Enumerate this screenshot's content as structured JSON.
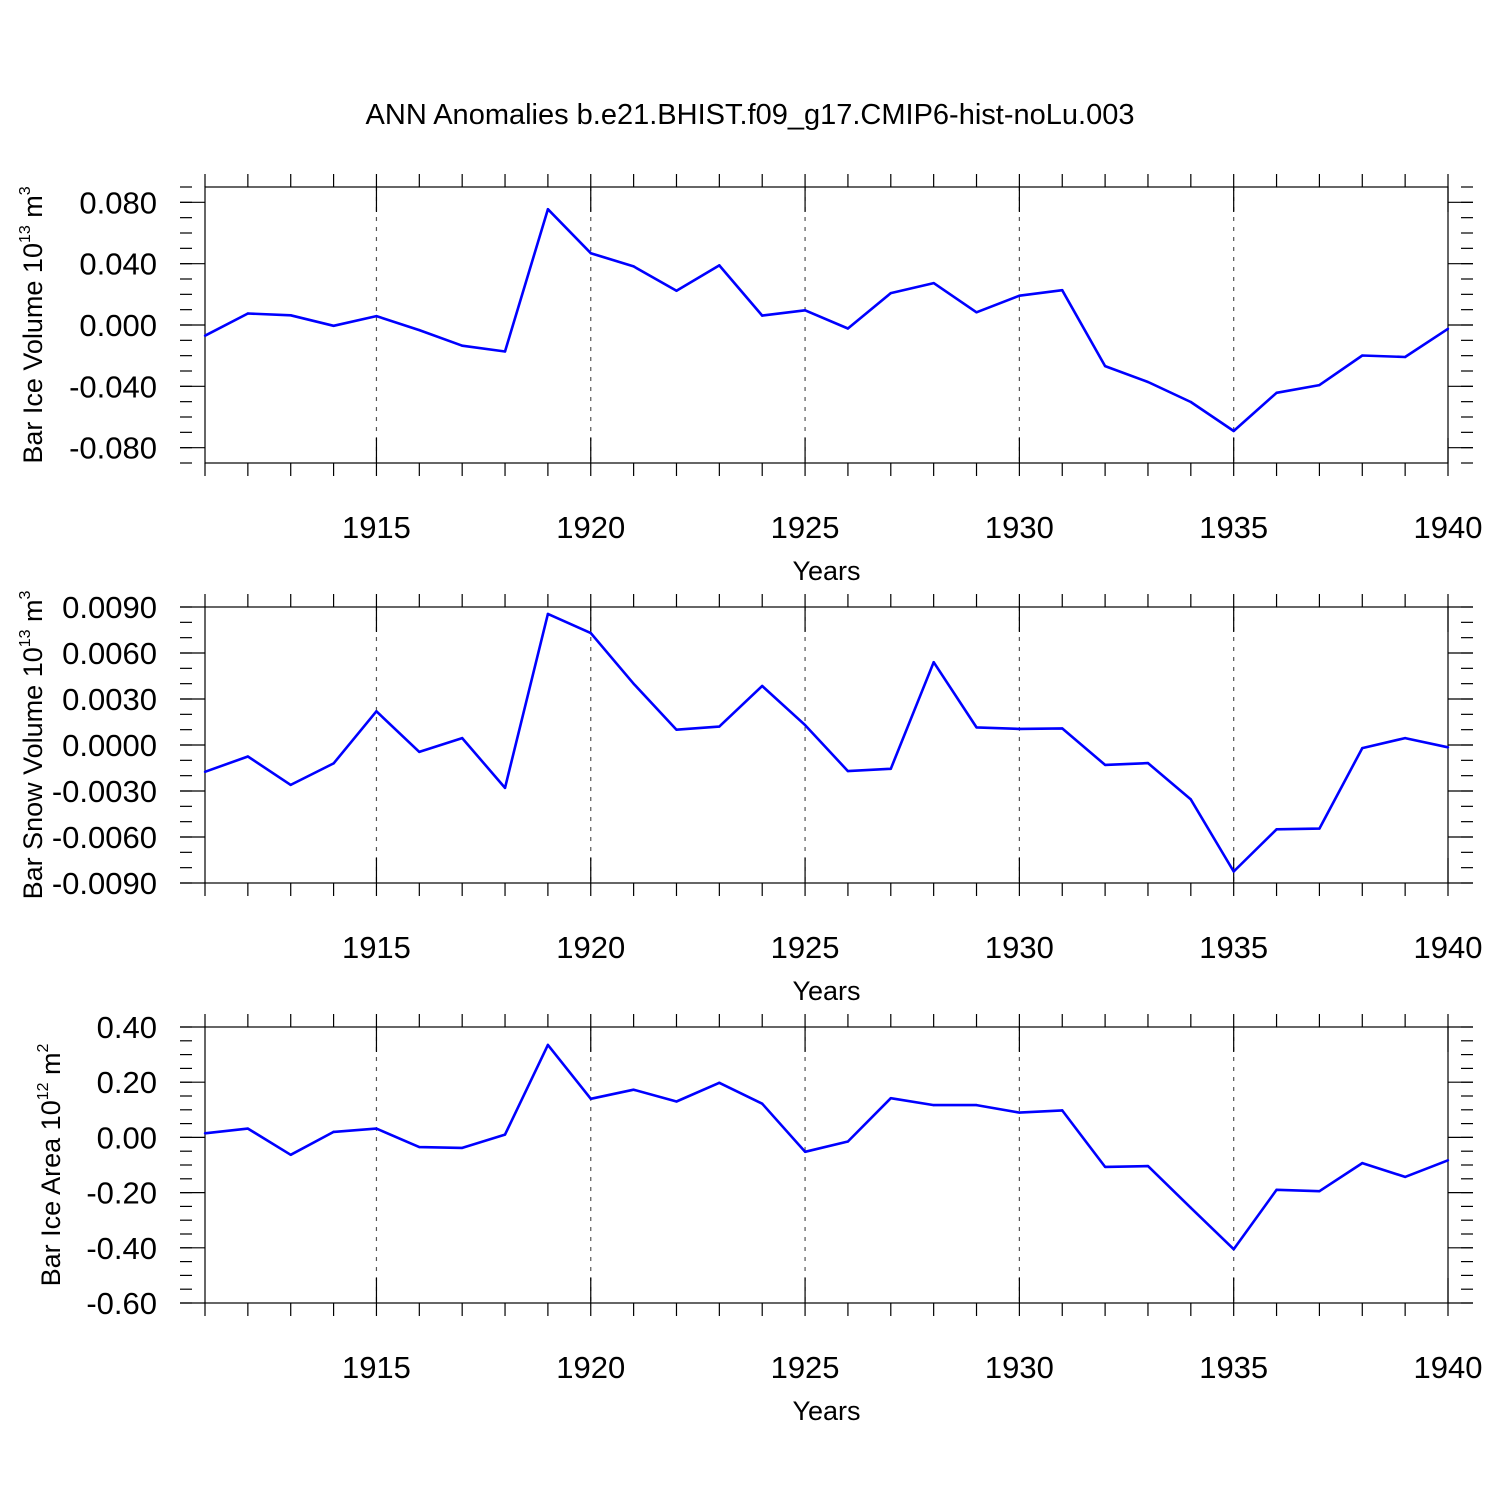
{
  "title": "ANN Anomalies b.e21.BHIST.f09_g17.CMIP6-hist-noLu.003",
  "colors": {
    "line": "#0000ff",
    "frame": "#000000",
    "grid": "#555555"
  },
  "chart_data": [
    {
      "type": "line",
      "name": "ice-volume",
      "ylabel": "Bar Ice Volume 10",
      "ylabel_exp": "13",
      "ylabel_unit": " m",
      "ylabel_unit_exp": "3",
      "xlabel": "Years",
      "xlim": [
        1911,
        1940
      ],
      "ylim": [
        -0.09,
        0.09
      ],
      "yticks": [
        0.08,
        0.04,
        0.0,
        -0.04,
        -0.08
      ],
      "ytick_labels": [
        "0.080",
        "0.040",
        "0.000",
        "-0.040",
        "-0.080"
      ],
      "yminor_step": 0.01,
      "xticks": [
        1915,
        1920,
        1925,
        1930,
        1935,
        1940
      ],
      "xtick_labels": [
        "1915",
        "1920",
        "1925",
        "1930",
        "1935",
        "1940"
      ],
      "grid_x": true,
      "x": [
        1911,
        1912,
        1913,
        1914,
        1915,
        1916,
        1917,
        1918,
        1919,
        1920,
        1921,
        1922,
        1923,
        1924,
        1925,
        1926,
        1927,
        1928,
        1929,
        1930,
        1931,
        1932,
        1933,
        1934,
        1935,
        1936,
        1937,
        1938,
        1939,
        1940
      ],
      "values": [
        -0.007,
        0.0075,
        0.0063,
        -0.0005,
        0.0058,
        -0.0033,
        -0.0135,
        -0.0173,
        0.0755,
        0.0468,
        0.0382,
        0.0223,
        0.0389,
        0.0061,
        0.0096,
        -0.0023,
        0.0208,
        0.0273,
        0.0083,
        0.0191,
        0.0227,
        -0.0268,
        -0.0372,
        -0.0502,
        -0.0691,
        -0.0442,
        -0.0392,
        -0.0199,
        -0.0209,
        -0.0025
      ]
    },
    {
      "type": "line",
      "name": "snow-volume",
      "ylabel": "Bar Snow Volume 10",
      "ylabel_exp": "13",
      "ylabel_unit": " m",
      "ylabel_unit_exp": "3",
      "xlabel": "Years",
      "xlim": [
        1911,
        1940
      ],
      "ylim": [
        -0.009,
        0.009
      ],
      "yticks": [
        0.009,
        0.006,
        0.003,
        0.0,
        -0.003,
        -0.006,
        -0.009
      ],
      "ytick_labels": [
        "0.0090",
        "0.0060",
        "0.0030",
        "0.0000",
        "-0.0030",
        "-0.0060",
        "-0.0090"
      ],
      "yminor_step": 0.001,
      "xticks": [
        1915,
        1920,
        1925,
        1930,
        1935,
        1940
      ],
      "xtick_labels": [
        "1915",
        "1920",
        "1925",
        "1930",
        "1935",
        "1940"
      ],
      "grid_x": true,
      "x": [
        1911,
        1912,
        1913,
        1914,
        1915,
        1916,
        1917,
        1918,
        1919,
        1920,
        1921,
        1922,
        1923,
        1924,
        1925,
        1926,
        1927,
        1928,
        1929,
        1930,
        1931,
        1932,
        1933,
        1934,
        1935,
        1936,
        1937,
        1938,
        1939,
        1940
      ],
      "values": [
        -0.00175,
        -0.00075,
        -0.0026,
        -0.0012,
        0.0022,
        -0.00045,
        0.00045,
        -0.0028,
        0.00855,
        0.0073,
        0.004,
        0.001,
        0.0012,
        0.00385,
        0.0013,
        -0.0017,
        -0.00155,
        0.0054,
        0.00115,
        0.00105,
        0.00108,
        -0.0013,
        -0.00118,
        -0.00355,
        -0.00825,
        -0.0055,
        -0.00545,
        -0.0002,
        0.00045,
        -0.00015
      ]
    },
    {
      "type": "line",
      "name": "ice-area",
      "ylabel": "Bar Ice Area 10",
      "ylabel_exp": "12",
      "ylabel_unit": " m",
      "ylabel_unit_exp": "2",
      "xlabel": "Years",
      "xlim": [
        1911,
        1940
      ],
      "ylim": [
        -0.6,
        0.4
      ],
      "yticks": [
        0.4,
        0.2,
        0.0,
        -0.2,
        -0.4,
        -0.6
      ],
      "ytick_labels": [
        "0.40",
        "0.20",
        "0.00",
        "-0.20",
        "-0.40",
        "-0.60"
      ],
      "yminor_step": 0.05,
      "xticks": [
        1915,
        1920,
        1925,
        1930,
        1935,
        1940
      ],
      "xtick_labels": [
        "1915",
        "1920",
        "1925",
        "1930",
        "1935",
        "1940"
      ],
      "grid_x": true,
      "x": [
        1911,
        1912,
        1913,
        1914,
        1915,
        1916,
        1917,
        1918,
        1919,
        1920,
        1921,
        1922,
        1923,
        1924,
        1925,
        1926,
        1927,
        1928,
        1929,
        1930,
        1931,
        1932,
        1933,
        1934,
        1935,
        1936,
        1937,
        1938,
        1939,
        1940
      ],
      "values": [
        0.015,
        0.032,
        -0.063,
        0.02,
        0.032,
        -0.035,
        -0.038,
        0.01,
        0.335,
        0.14,
        0.173,
        0.13,
        0.198,
        0.122,
        -0.052,
        -0.015,
        0.142,
        0.117,
        0.117,
        0.09,
        0.098,
        -0.107,
        -0.104,
        -0.255,
        -0.405,
        -0.19,
        -0.195,
        -0.093,
        -0.143,
        -0.083
      ]
    }
  ]
}
